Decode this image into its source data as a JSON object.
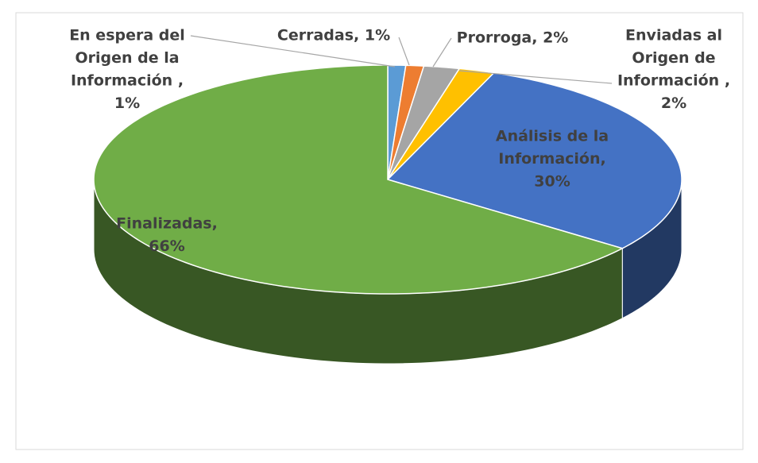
{
  "chart_data": {
    "type": "pie",
    "labels": [
      [
        "En espera del",
        "Origen de la",
        "Información ,",
        "1%"
      ],
      [
        "Cerradas, 1%"
      ],
      [
        "Prorroga, 2%"
      ],
      [
        "Enviadas al",
        "Origen de",
        "Información ,",
        "2%"
      ],
      [
        "Análisis de la",
        "Información,",
        "30%"
      ],
      [
        "Finalizadas,",
        "66%"
      ]
    ],
    "values": [
      1,
      1,
      2,
      2,
      30,
      66
    ],
    "colors": [
      "#5b9bd5",
      "#ed7d31",
      "#a5a5a5",
      "#ffc000",
      "#4472c4",
      "#70ad47"
    ]
  }
}
